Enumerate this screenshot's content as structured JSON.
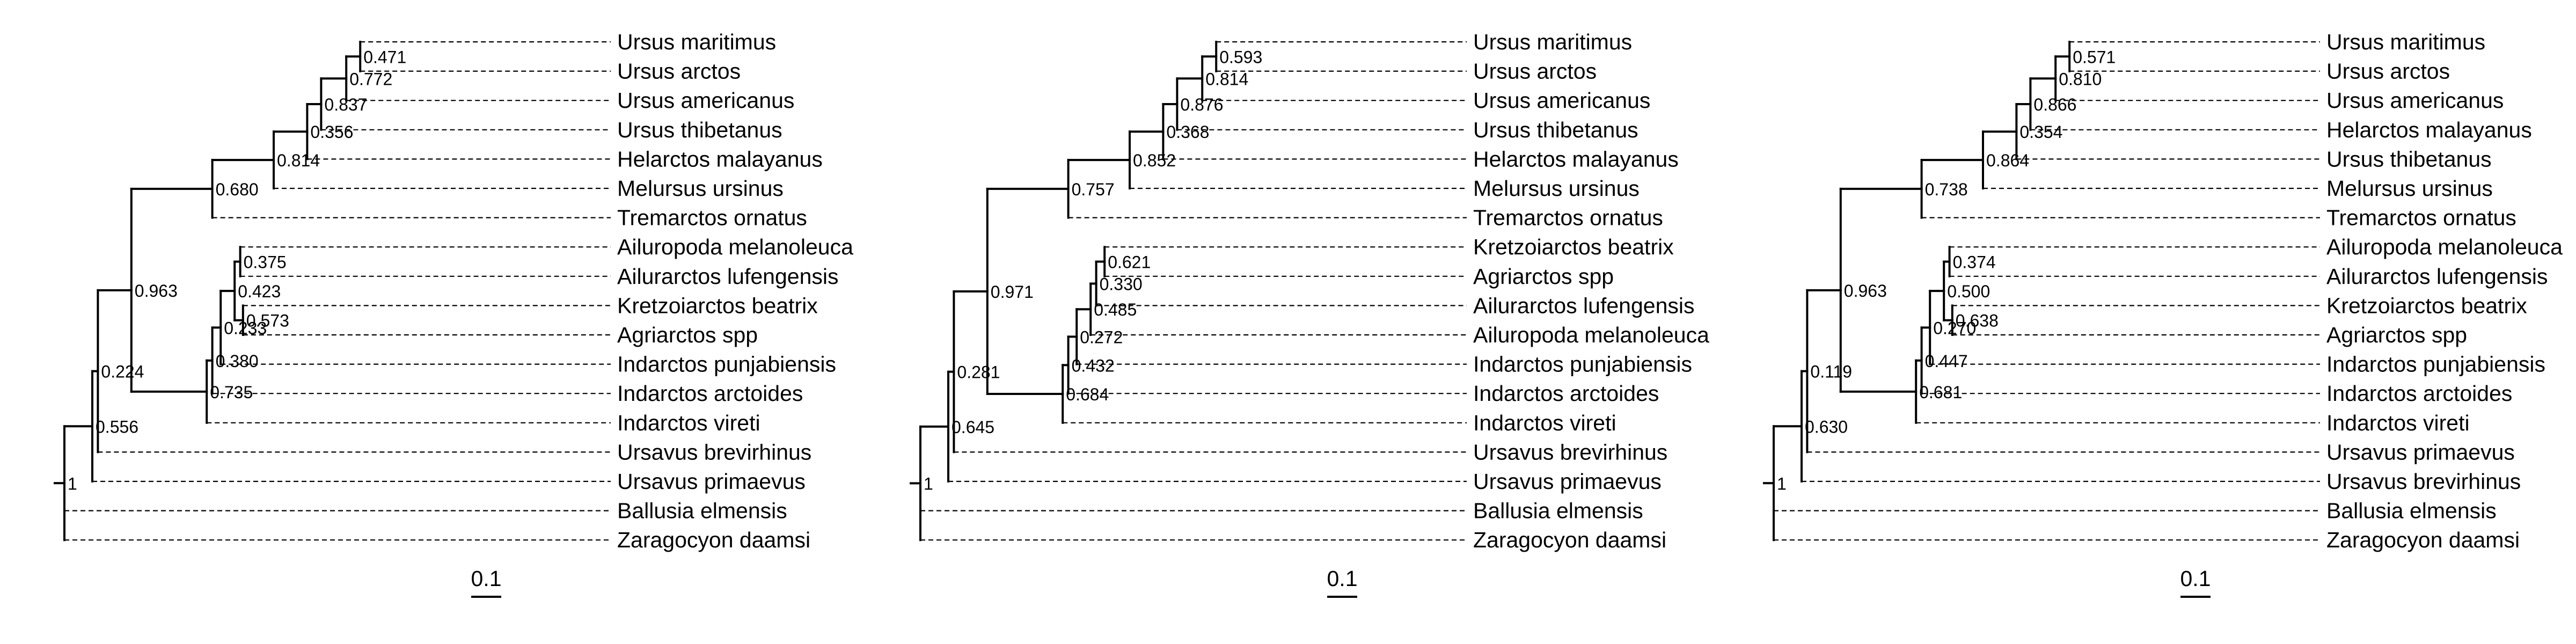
{
  "trees": [
    {
      "tree": {
        "children": [
          {
            "children": [
              {
                "children": [
                  {
                    "children": [
                      {
                        "children": [
                          {
                            "children": [
                              {
                                "children": [
                                  {
                                    "children": [
                                      {
                                        "name": "Ursus maritimus"
                                      },
                                      {
                                        "name": "Ursus arctos"
                                      }
                                    ],
                                    "support": "0.471"
                                  },
                                  {
                                    "name": "Ursus americanus"
                                  }
                                ],
                                "support": "0.772"
                              },
                              {
                                "name": "Ursus thibetanus"
                              }
                            ],
                            "support": "0.837"
                          },
                          {
                            "name": "Helarctos malayanus"
                          }
                        ],
                        "support": "0.356"
                      },
                      {
                        "name": "Melursus ursinus"
                      }
                    ],
                    "support": "0.814"
                  },
                  {
                    "name": "Tremarctos ornatus"
                  }
                ],
                "support": "0.680"
              },
              {
                "children": [
                  {
                    "children": [
                      {
                        "children": [
                          {
                            "children": [
                              {
                                "name": "Ailuropoda melanoleuca"
                              },
                              {
                                "name": "Ailurarctos lufengensis"
                              }
                            ],
                            "support": "0.375"
                          },
                          {
                            "children": [
                              {
                                "name": "Kretzoiarctos beatrix"
                              },
                              {
                                "name": "Agriarctos spp"
                              }
                            ],
                            "support": "0.573"
                          }
                        ],
                        "support": "0.423"
                      },
                      {
                        "name": "Indarctos punjabiensis"
                      }
                    ],
                    "support": "0.233"
                  },
                  {
                    "name": "Indarctos arctoides"
                  },
                  {
                    "name": "Indarctos vireti"
                  }
                ],
                "support": "0.380"
              }
            ],
            "support": "0.963"
          },
          {
            "name": "Ursavus brevirhinus"
          },
          {
            "name": "Ursavus primaevus"
          },
          {
            "name": "Ballusia elmensis"
          },
          {
            "name": "Zaragocyon daamsi"
          }
        ],
        "support": ""
      },
      "labels_extra": [
        {
          "id": "label-0-735",
          "text": "0.735"
        },
        {
          "id": "label-0-224",
          "text": "0.224"
        },
        {
          "id": "label-0-556",
          "text": "0.556"
        },
        {
          "id": "label-1",
          "text": "1"
        }
      ],
      "scale_label": "0.1"
    },
    {
      "tree": {},
      "scale_label": "0.1"
    },
    {
      "tree": {},
      "scale_label": "0.1"
    }
  ],
  "panels": [
    {
      "nodes": [
        {
          "id": "p0",
          "parent": null,
          "depth": 0.0,
          "support": "1"
        },
        {
          "id": "p1",
          "parent": "p0",
          "depth": 0.1,
          "support": "0.556"
        },
        {
          "id": "p2",
          "parent": "p1",
          "depth": 0.12,
          "support": "0.224"
        },
        {
          "id": "p3",
          "parent": "p2",
          "depth": 0.24,
          "support": "0.963"
        },
        {
          "id": "p4",
          "parent": "p3",
          "depth": 0.53,
          "support": "0.680"
        },
        {
          "id": "p5",
          "parent": "p4",
          "depth": 0.75,
          "support": "0.814"
        },
        {
          "id": "p6",
          "parent": "p5",
          "depth": 0.87,
          "support": "0.356"
        },
        {
          "id": "p7",
          "parent": "p6",
          "depth": 0.92,
          "support": "0.837"
        },
        {
          "id": "p8",
          "parent": "p7",
          "depth": 1.01,
          "support": "0.772"
        },
        {
          "id": "p9",
          "parent": "p8",
          "depth": 1.06,
          "support": "0.471"
        },
        {
          "id": "p10",
          "parent": "p3",
          "depth": 0.51,
          "support": "0.735"
        },
        {
          "id": "p11",
          "parent": "p10",
          "depth": 0.53,
          "support": "0.380"
        },
        {
          "id": "p12",
          "parent": "p11",
          "depth": 0.56,
          "support": "0.233"
        },
        {
          "id": "p13",
          "parent": "p12",
          "depth": 0.61,
          "support": "0.423"
        },
        {
          "id": "p14",
          "parent": "p13",
          "depth": 0.63,
          "support": "0.375"
        },
        {
          "id": "p15",
          "parent": "p13",
          "depth": 0.64,
          "support": "0.573"
        }
      ],
      "tips": [
        {
          "name": "Ursus maritimus",
          "parent": "p9"
        },
        {
          "name": "Ursus arctos",
          "parent": "p9"
        },
        {
          "name": "Ursus americanus",
          "parent": "p8"
        },
        {
          "name": "Ursus thibetanus",
          "parent": "p7"
        },
        {
          "name": "Helarctos malayanus",
          "parent": "p6"
        },
        {
          "name": "Melursus ursinus",
          "parent": "p5"
        },
        {
          "name": "Tremarctos ornatus",
          "parent": "p4"
        },
        {
          "name": "Ailuropoda melanoleuca",
          "parent": "p14"
        },
        {
          "name": "Ailurarctos lufengensis",
          "parent": "p14"
        },
        {
          "name": "Kretzoiarctos beatrix",
          "parent": "p15"
        },
        {
          "name": "Agriarctos spp",
          "parent": "p15"
        },
        {
          "name": "Indarctos punjabiensis",
          "parent": "p12"
        },
        {
          "name": "Indarctos arctoides",
          "parent": "p11"
        },
        {
          "name": "Indarctos vireti",
          "parent": "p10"
        },
        {
          "name": "Ursavus brevirhinus",
          "parent": "p2"
        },
        {
          "name": "Ursavus primaevus",
          "parent": "p1"
        },
        {
          "name": "Ballusia elmensis",
          "parent": "p0"
        },
        {
          "name": "Zaragocyon daamsi",
          "parent": "p0"
        }
      ],
      "scale_label": "0.1"
    },
    {
      "nodes": [
        {
          "id": "q0",
          "parent": null,
          "depth": 0.0,
          "support": "1"
        },
        {
          "id": "q1",
          "parent": "q0",
          "depth": 0.1,
          "support": "0.645"
        },
        {
          "id": "q2",
          "parent": "q1",
          "depth": 0.12,
          "support": "0.281"
        },
        {
          "id": "q3",
          "parent": "q2",
          "depth": 0.24,
          "support": "0.971"
        },
        {
          "id": "q4",
          "parent": "q3",
          "depth": 0.53,
          "support": "0.757"
        },
        {
          "id": "q5",
          "parent": "q4",
          "depth": 0.75,
          "support": "0.852"
        },
        {
          "id": "q6",
          "parent": "q5",
          "depth": 0.87,
          "support": "0.368"
        },
        {
          "id": "q7",
          "parent": "q6",
          "depth": 0.92,
          "support": "0.876"
        },
        {
          "id": "q8",
          "parent": "q7",
          "depth": 1.01,
          "support": "0.814"
        },
        {
          "id": "q9",
          "parent": "q8",
          "depth": 1.06,
          "support": "0.593"
        },
        {
          "id": "q10",
          "parent": "q3",
          "depth": 0.51,
          "support": "0.684"
        },
        {
          "id": "q11",
          "parent": "q10",
          "depth": 0.53,
          "support": "0.432"
        },
        {
          "id": "q12",
          "parent": "q11",
          "depth": 0.56,
          "support": "0.272"
        },
        {
          "id": "q13",
          "parent": "q12",
          "depth": 0.61,
          "support": "0.485"
        },
        {
          "id": "q14",
          "parent": "q13",
          "depth": 0.63,
          "support": "0.330"
        },
        {
          "id": "q15",
          "parent": "q14",
          "depth": 0.66,
          "support": "0.621"
        }
      ],
      "tips": [
        {
          "name": "Ursus maritimus",
          "parent": "q9"
        },
        {
          "name": "Ursus arctos",
          "parent": "q9"
        },
        {
          "name": "Ursus americanus",
          "parent": "q8"
        },
        {
          "name": "Ursus thibetanus",
          "parent": "q7"
        },
        {
          "name": "Helarctos malayanus",
          "parent": "q6"
        },
        {
          "name": "Melursus ursinus",
          "parent": "q5"
        },
        {
          "name": "Tremarctos ornatus",
          "parent": "q4"
        },
        {
          "name": "Kretzoiarctos beatrix",
          "parent": "q15"
        },
        {
          "name": "Agriarctos spp",
          "parent": "q15"
        },
        {
          "name": "Ailurarctos lufengensis",
          "parent": "q14"
        },
        {
          "name": "Ailuropoda melanoleuca",
          "parent": "q13"
        },
        {
          "name": "Indarctos punjabiensis",
          "parent": "q12"
        },
        {
          "name": "Indarctos arctoides",
          "parent": "q11"
        },
        {
          "name": "Indarctos vireti",
          "parent": "q10"
        },
        {
          "name": "Ursavus brevirhinus",
          "parent": "q2"
        },
        {
          "name": "Ursavus primaevus",
          "parent": "q1"
        },
        {
          "name": "Ballusia elmensis",
          "parent": "q0"
        },
        {
          "name": "Zaragocyon daamsi",
          "parent": "q0"
        }
      ],
      "scale_label": "0.1"
    },
    {
      "nodes": [
        {
          "id": "r0",
          "parent": null,
          "depth": 0.0,
          "support": "1"
        },
        {
          "id": "r1",
          "parent": "r0",
          "depth": 0.1,
          "support": "0.630"
        },
        {
          "id": "r2",
          "parent": "r1",
          "depth": 0.12,
          "support": "0.119"
        },
        {
          "id": "r3",
          "parent": "r2",
          "depth": 0.24,
          "support": "0.963"
        },
        {
          "id": "r4",
          "parent": "r3",
          "depth": 0.53,
          "support": "0.738"
        },
        {
          "id": "r5",
          "parent": "r4",
          "depth": 0.75,
          "support": "0.864"
        },
        {
          "id": "r6",
          "parent": "r5",
          "depth": 0.87,
          "support": "0.354"
        },
        {
          "id": "r7",
          "parent": "r6",
          "depth": 0.92,
          "support": "0.866"
        },
        {
          "id": "r8",
          "parent": "r7",
          "depth": 1.01,
          "support": "0.810"
        },
        {
          "id": "r9",
          "parent": "r8",
          "depth": 1.06,
          "support": "0.571"
        },
        {
          "id": "r10",
          "parent": "r3",
          "depth": 0.51,
          "support": "0.681"
        },
        {
          "id": "r11",
          "parent": "r10",
          "depth": 0.53,
          "support": "0.447"
        },
        {
          "id": "r12",
          "parent": "r11",
          "depth": 0.56,
          "support": "0.270"
        },
        {
          "id": "r13",
          "parent": "r12",
          "depth": 0.61,
          "support": "0.500"
        },
        {
          "id": "r14",
          "parent": "r13",
          "depth": 0.63,
          "support": "0.374"
        },
        {
          "id": "r15",
          "parent": "r13",
          "depth": 0.64,
          "support": "0.638"
        }
      ],
      "tips": [
        {
          "name": "Ursus maritimus",
          "parent": "r9"
        },
        {
          "name": "Ursus arctos",
          "parent": "r9"
        },
        {
          "name": "Ursus americanus",
          "parent": "r8"
        },
        {
          "name": "Helarctos malayanus",
          "parent": "r7"
        },
        {
          "name": "Ursus thibetanus",
          "parent": "r6"
        },
        {
          "name": "Melursus ursinus",
          "parent": "r5"
        },
        {
          "name": "Tremarctos ornatus",
          "parent": "r4"
        },
        {
          "name": "Ailuropoda melanoleuca",
          "parent": "r14"
        },
        {
          "name": "Ailurarctos lufengensis",
          "parent": "r14"
        },
        {
          "name": "Kretzoiarctos beatrix",
          "parent": "r15"
        },
        {
          "name": "Agriarctos spp",
          "parent": "r15"
        },
        {
          "name": "Indarctos punjabiensis",
          "parent": "r12"
        },
        {
          "name": "Indarctos arctoides",
          "parent": "r11"
        },
        {
          "name": "Indarctos vireti",
          "parent": "r10"
        },
        {
          "name": "Ursavus primaevus",
          "parent": "r2"
        },
        {
          "name": "Ursavus brevirhinus",
          "parent": "r1"
        },
        {
          "name": "Ballusia elmensis",
          "parent": "r0"
        },
        {
          "name": "Zaragocyon daamsi",
          "parent": "r0"
        }
      ],
      "scale_label": "0.1"
    }
  ]
}
